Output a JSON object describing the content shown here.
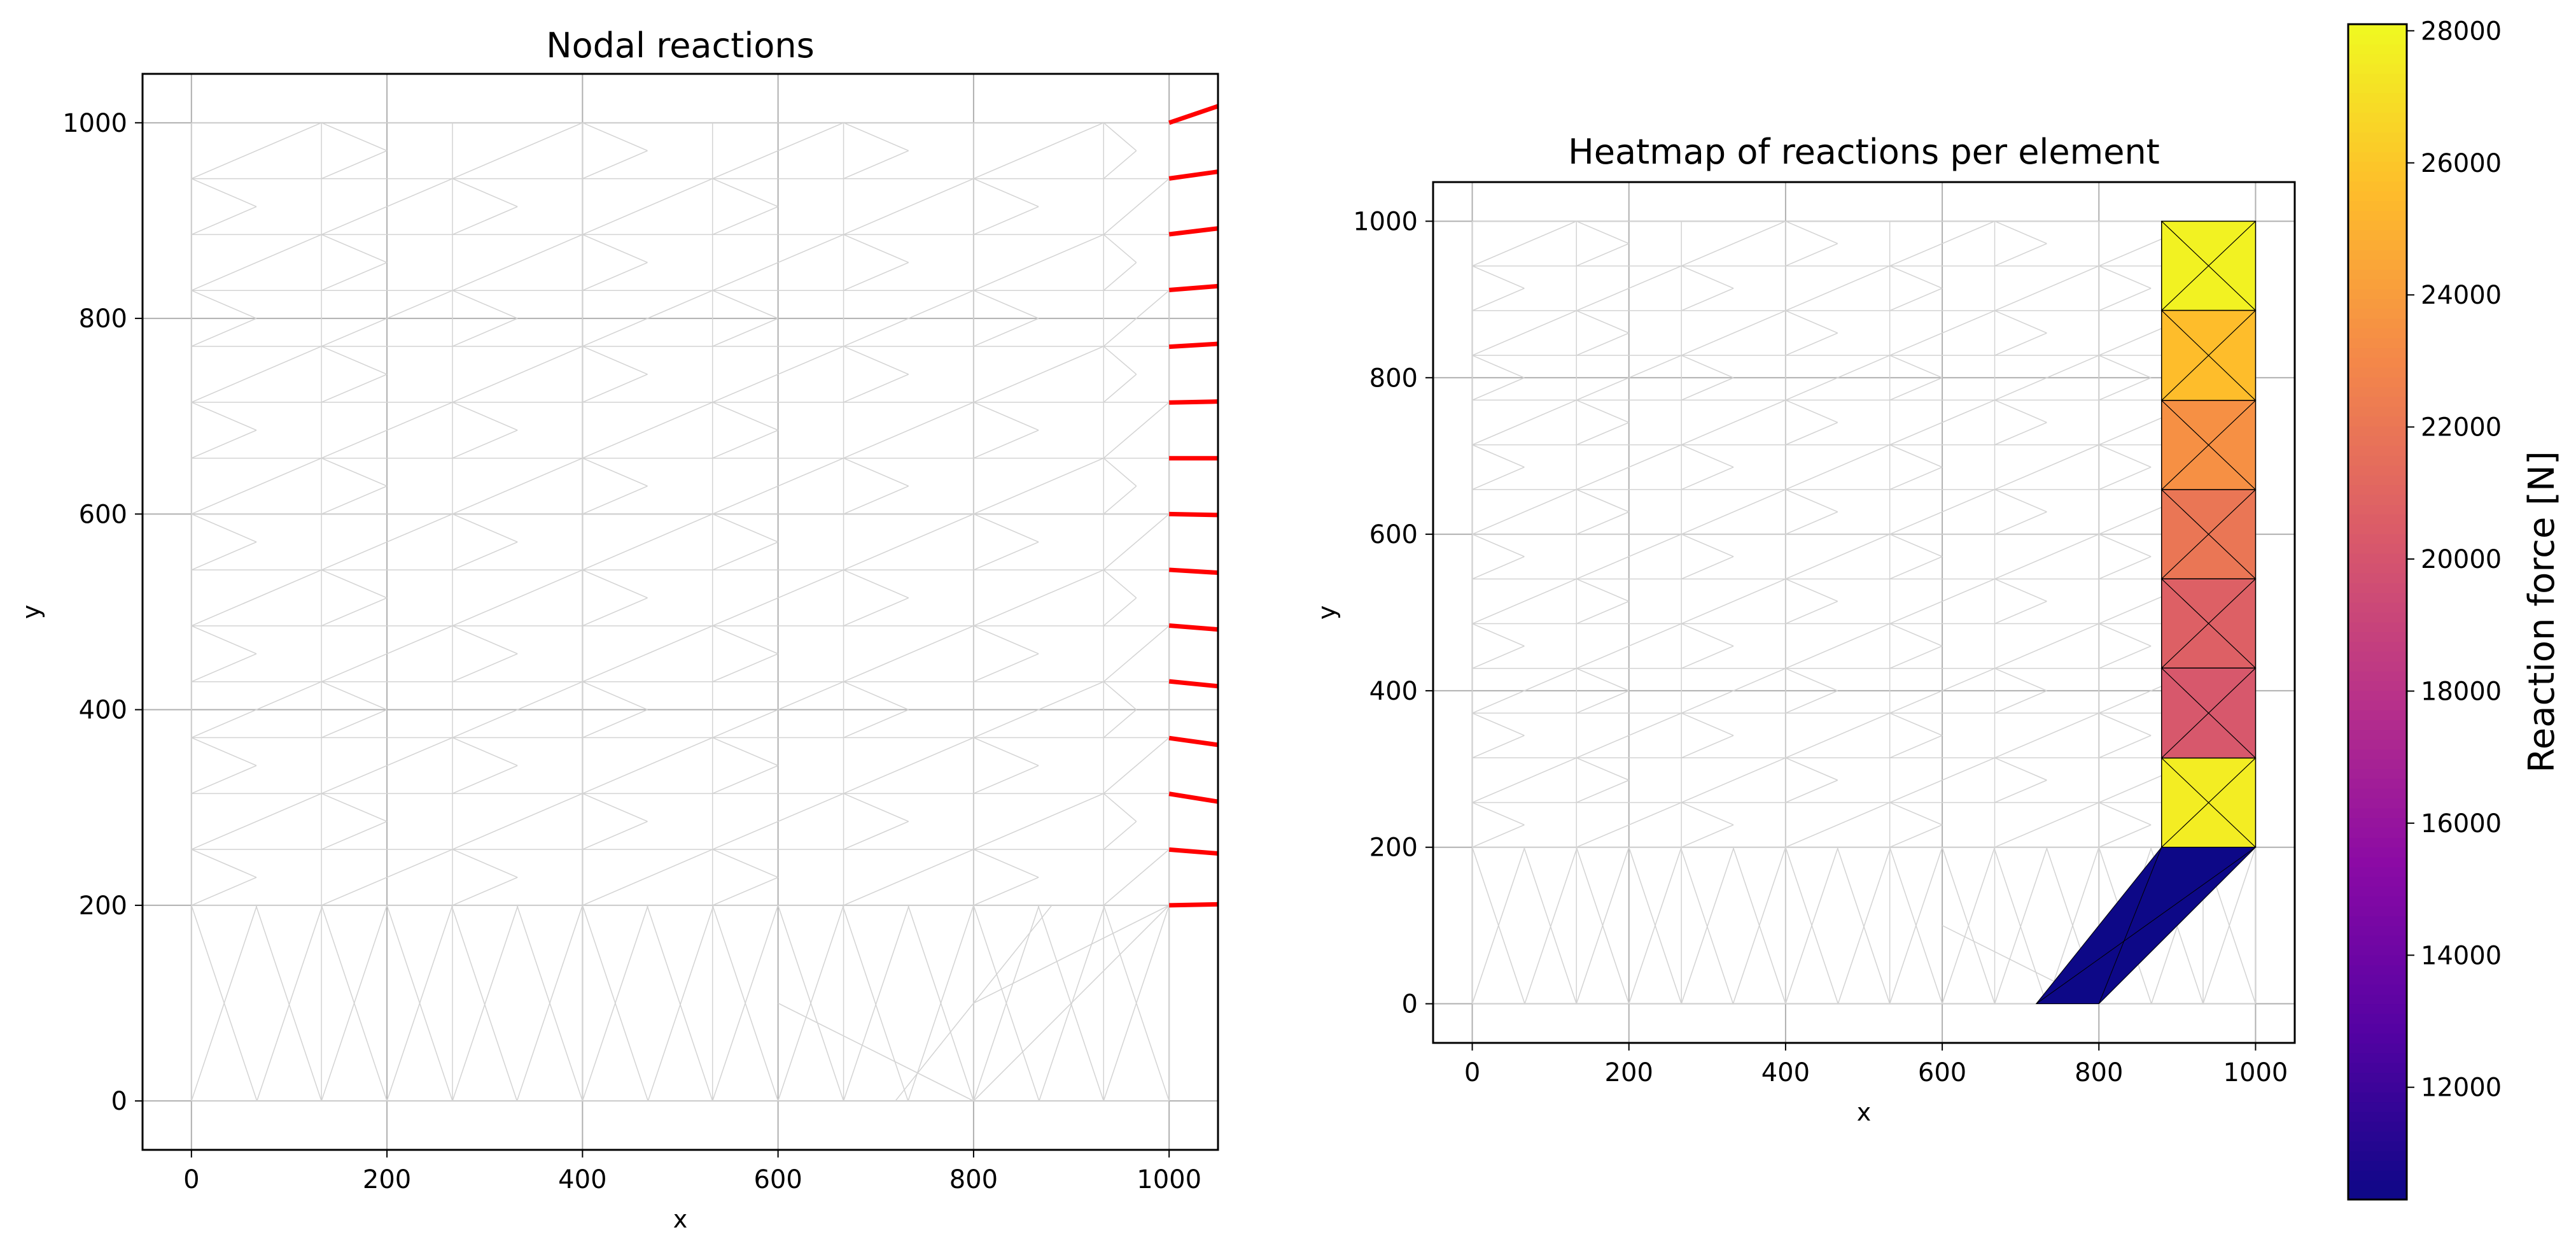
{
  "chart_data": [
    {
      "type": "line",
      "title": "Nodal reactions",
      "xlabel": "x",
      "ylabel": "y",
      "xlim": [
        -50,
        1050
      ],
      "ylim": [
        -50,
        1050
      ],
      "xticks": [
        0,
        200,
        400,
        600,
        800,
        1000
      ],
      "yticks": [
        0,
        200,
        400,
        600,
        800,
        1000
      ],
      "grid": true,
      "mesh_color": "#d3d3d3",
      "reaction_color": "#ff0000",
      "reaction_arrows": [
        {
          "x0": 1000,
          "y0": 200,
          "x1": 1050,
          "y1": 201
        },
        {
          "x0": 1000,
          "y0": 257,
          "x1": 1050,
          "y1": 253
        },
        {
          "x0": 1000,
          "y0": 314,
          "x1": 1050,
          "y1": 306
        },
        {
          "x0": 1000,
          "y0": 371,
          "x1": 1050,
          "y1": 364
        },
        {
          "x0": 1000,
          "y0": 429,
          "x1": 1050,
          "y1": 424
        },
        {
          "x0": 1000,
          "y0": 486,
          "x1": 1050,
          "y1": 482
        },
        {
          "x0": 1000,
          "y0": 543,
          "x1": 1050,
          "y1": 540
        },
        {
          "x0": 1000,
          "y0": 600,
          "x1": 1050,
          "y1": 599
        },
        {
          "x0": 1000,
          "y0": 657,
          "x1": 1050,
          "y1": 657
        },
        {
          "x0": 1000,
          "y0": 714,
          "x1": 1050,
          "y1": 715
        },
        {
          "x0": 1000,
          "y0": 771,
          "x1": 1050,
          "y1": 774
        },
        {
          "x0": 1000,
          "y0": 829,
          "x1": 1050,
          "y1": 833
        },
        {
          "x0": 1000,
          "y0": 886,
          "x1": 1050,
          "y1": 892
        },
        {
          "x0": 1000,
          "y0": 943,
          "x1": 1050,
          "y1": 950
        },
        {
          "x0": 1000,
          "y0": 1000,
          "x1": 1050,
          "y1": 1017
        }
      ]
    },
    {
      "type": "heatmap",
      "title": "Heatmap of reactions per element",
      "xlabel": "x",
      "ylabel": "y",
      "xlim": [
        -50,
        1050
      ],
      "ylim": [
        -50,
        1050
      ],
      "xticks": [
        0,
        200,
        400,
        600,
        800,
        1000
      ],
      "yticks": [
        0,
        200,
        400,
        600,
        800,
        1000
      ],
      "grid": true,
      "colormap": "plasma",
      "colorbar": {
        "label": "Reaction force [N]",
        "range": [
          10300,
          28100
        ],
        "ticks": [
          12000,
          14000,
          16000,
          18000,
          20000,
          22000,
          24000,
          26000,
          28000
        ]
      },
      "elements": [
        {
          "x": [
            880,
            1000
          ],
          "y": [
            886,
            1000
          ],
          "value": 27800
        },
        {
          "x": [
            880,
            1000
          ],
          "y": [
            771,
            886
          ],
          "value": 25600
        },
        {
          "x": [
            880,
            1000
          ],
          "y": [
            657,
            771
          ],
          "value": 23400
        },
        {
          "x": [
            880,
            1000
          ],
          "y": [
            543,
            657
          ],
          "value": 22000
        },
        {
          "x": [
            880,
            1000
          ],
          "y": [
            429,
            543
          ],
          "value": 20700
        },
        {
          "x": [
            880,
            1000
          ],
          "y": [
            314,
            429
          ],
          "value": 20200
        },
        {
          "x": [
            880,
            1000
          ],
          "y": [
            200,
            314
          ],
          "value": 27600
        },
        {
          "polygon": [
            [
              720,
              0
            ],
            [
              800,
              0
            ],
            [
              1000,
              200
            ],
            [
              880,
              200
            ]
          ],
          "value": 10300
        }
      ]
    }
  ]
}
